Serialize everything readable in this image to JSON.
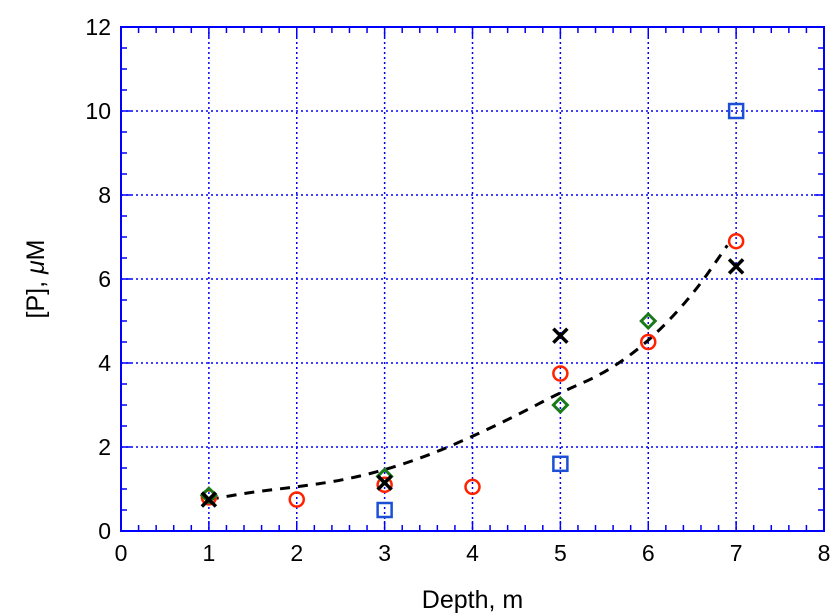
{
  "chart_data": {
    "type": "scatter",
    "title": "",
    "xlabel": "Depth, m",
    "ylabel_prefix": "[P], ",
    "ylabel_mu": "μ",
    "ylabel_suffix": "M",
    "xlim": [
      0,
      8
    ],
    "ylim": [
      0,
      12
    ],
    "x_ticks": [
      0,
      1,
      2,
      3,
      4,
      5,
      6,
      7,
      8
    ],
    "y_ticks": [
      0,
      2,
      4,
      6,
      8,
      10,
      12
    ],
    "grid": true,
    "grid_style": "dotted",
    "legend": "none",
    "colors": {
      "axis": "#0000ff",
      "grid": "#0000ff",
      "circles": "#ff2200",
      "squares": "#1a4fd6",
      "diamonds": "#1a7a1a",
      "crosses": "#000000",
      "fit": "#000000"
    },
    "series": [
      {
        "marker": "circle",
        "color_key": "circles",
        "x": [
          1,
          2,
          3,
          4,
          5,
          6,
          7
        ],
        "y": [
          0.8,
          0.75,
          1.1,
          1.05,
          3.75,
          4.5,
          6.9
        ]
      },
      {
        "marker": "square",
        "color_key": "squares",
        "x": [
          3,
          5,
          7
        ],
        "y": [
          0.5,
          1.6,
          10.0
        ]
      },
      {
        "marker": "diamond",
        "color_key": "diamonds",
        "x": [
          1,
          3,
          5,
          6
        ],
        "y": [
          0.85,
          1.3,
          3.0,
          5.0
        ]
      },
      {
        "marker": "cross",
        "color_key": "crosses",
        "x": [
          1,
          3,
          5,
          7
        ],
        "y": [
          0.75,
          1.15,
          4.65,
          6.3
        ]
      }
    ],
    "fit_line": {
      "style": "dashed",
      "x": [
        1.0,
        1.5,
        2.0,
        2.5,
        3.0,
        3.5,
        4.0,
        4.5,
        5.0,
        5.5,
        6.0,
        6.5,
        6.9
      ],
      "y": [
        0.75,
        0.93,
        1.05,
        1.2,
        1.45,
        1.8,
        2.25,
        2.75,
        3.3,
        3.75,
        4.5,
        5.6,
        6.8
      ]
    }
  }
}
